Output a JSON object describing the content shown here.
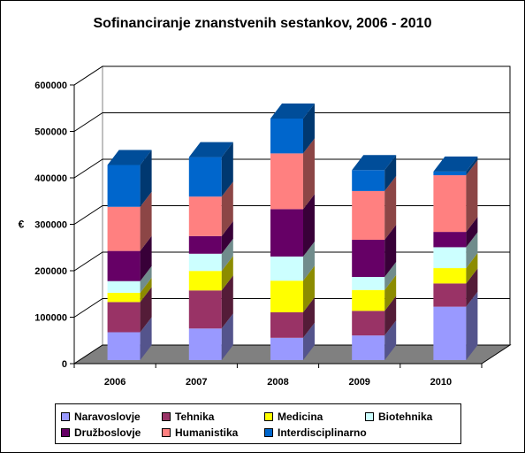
{
  "chart_data": {
    "type": "bar",
    "stacked": true,
    "three_d": true,
    "title": "Sofinanciranje znanstvenih sestankov, 2006 - 2010",
    "ylabel": "€",
    "xlabel": "",
    "ylim": [
      0,
      600000
    ],
    "yticks": [
      "0",
      "100000",
      "200000",
      "300000",
      "400000",
      "500000",
      "600000"
    ],
    "categories": [
      "2006",
      "2007",
      "2008",
      "2009",
      "2010"
    ],
    "grid": true,
    "legend_position": "bottom",
    "series": [
      {
        "name": "Naravoslovje",
        "color": "#9999ff",
        "values": [
          60000,
          68000,
          48000,
          53000,
          115000
        ]
      },
      {
        "name": "Tehnika",
        "color": "#993366",
        "values": [
          65000,
          82000,
          55000,
          53000,
          50000
        ]
      },
      {
        "name": "Medicina",
        "color": "#ffff00",
        "values": [
          20000,
          42000,
          68000,
          45000,
          33000
        ]
      },
      {
        "name": "Biotehnika",
        "color": "#ccffff",
        "values": [
          25000,
          37000,
          52000,
          28000,
          45000
        ]
      },
      {
        "name": "Družboslovje",
        "color": "#660066",
        "values": [
          65000,
          38000,
          102000,
          80000,
          33000
        ]
      },
      {
        "name": "Humanistika",
        "color": "#ff8080",
        "values": [
          95000,
          85000,
          120000,
          105000,
          122000
        ]
      },
      {
        "name": "Interdisciplinarno",
        "color": "#0066cc",
        "values": [
          90000,
          85000,
          75000,
          45000,
          8000
        ]
      }
    ],
    "floor_color": "#808080",
    "wall_color": "#ffffff"
  }
}
